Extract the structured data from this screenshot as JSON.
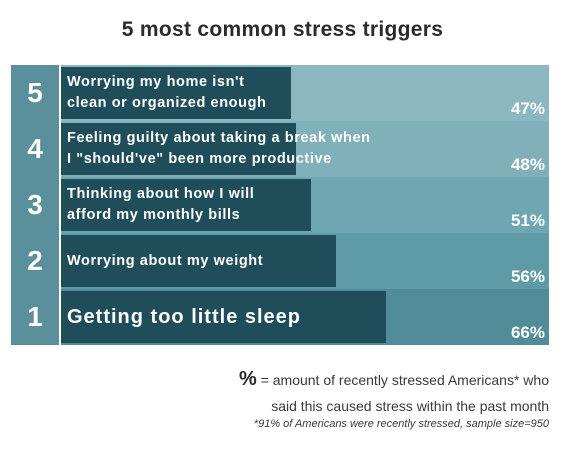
{
  "chart_data": {
    "type": "bar",
    "title": "5 most common stress triggers",
    "orientation": "horizontal",
    "items": [
      {
        "rank": "5",
        "label": "Worrying my home isn't\nclean or organized enough",
        "value": 47,
        "value_label": "47%"
      },
      {
        "rank": "4",
        "label": "Feeling guilty about taking a break when\nI \"should've\" been more productive",
        "value": 48,
        "value_label": "48%"
      },
      {
        "rank": "3",
        "label": "Thinking about how I will\nafford my monthly bills",
        "value": 51,
        "value_label": "51%"
      },
      {
        "rank": "2",
        "label": "Worrying about my weight",
        "value": 56,
        "value_label": "56%"
      },
      {
        "rank": "1",
        "label": "Getting too little sleep",
        "value": 66,
        "value_label": "66%"
      }
    ],
    "colors": {
      "bar": "#1f4e5a",
      "rank_column": "#5a909c",
      "row_backgrounds": [
        "#8ab7c0",
        "#80b0ba",
        "#6ea6b2",
        "#5f9aa7",
        "#528c99"
      ]
    }
  },
  "legend": {
    "symbol": "%",
    "line1": " = amount of recently stressed Americans* who",
    "line2": "said this caused stress within the past month"
  },
  "footnote": "*91% of Americans were recently stressed, sample size=950"
}
